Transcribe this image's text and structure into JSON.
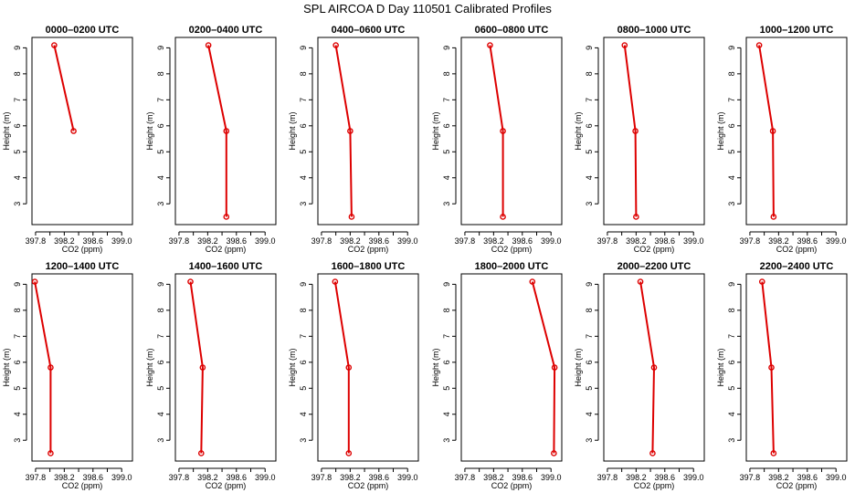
{
  "title": "SPL AIRCOA D  Day 110501  Calibrated Profiles",
  "colors": {
    "series": "#dd0000",
    "axis": "#000000"
  },
  "chart_data": [
    {
      "type": "line",
      "title": "0000–0200 UTC",
      "xlabel": "CO2 (ppm)",
      "ylabel": "Height (m)",
      "xlim": [
        397.75,
        399.15
      ],
      "ylim": [
        2.2,
        9.4
      ],
      "xticks": [
        "397.8",
        "398.2",
        "398.6",
        "399.0"
      ],
      "yticks": [
        "3",
        "4",
        "5",
        "6",
        "7",
        "8",
        "9"
      ],
      "points": [
        {
          "co2": 398.06,
          "height": 9.1
        },
        {
          "co2": 398.33,
          "height": 5.8
        }
      ]
    },
    {
      "type": "line",
      "title": "0200–0400 UTC",
      "xlabel": "CO2 (ppm)",
      "ylabel": "Height (m)",
      "xlim": [
        397.75,
        399.15
      ],
      "ylim": [
        2.2,
        9.4
      ],
      "xticks": [
        "397.8",
        "398.2",
        "398.6",
        "399.0"
      ],
      "yticks": [
        "3",
        "4",
        "5",
        "6",
        "7",
        "8",
        "9"
      ],
      "points": [
        {
          "co2": 398.21,
          "height": 9.1
        },
        {
          "co2": 398.46,
          "height": 5.8
        },
        {
          "co2": 398.46,
          "height": 2.5
        }
      ]
    },
    {
      "type": "line",
      "title": "0400–0600 UTC",
      "xlabel": "CO2 (ppm)",
      "ylabel": "Height (m)",
      "xlim": [
        397.75,
        399.15
      ],
      "ylim": [
        2.2,
        9.4
      ],
      "xticks": [
        "397.8",
        "398.2",
        "398.6",
        "399.0"
      ],
      "yticks": [
        "3",
        "4",
        "5",
        "6",
        "7",
        "8",
        "9"
      ],
      "points": [
        {
          "co2": 398.0,
          "height": 9.1
        },
        {
          "co2": 398.2,
          "height": 5.8
        },
        {
          "co2": 398.22,
          "height": 2.5
        }
      ]
    },
    {
      "type": "line",
      "title": "0600–0800 UTC",
      "xlabel": "CO2 (ppm)",
      "ylabel": "Height (m)",
      "xlim": [
        397.75,
        399.15
      ],
      "ylim": [
        2.2,
        9.4
      ],
      "xticks": [
        "397.8",
        "398.2",
        "398.6",
        "399.0"
      ],
      "yticks": [
        "3",
        "4",
        "5",
        "6",
        "7",
        "8",
        "9"
      ],
      "points": [
        {
          "co2": 398.15,
          "height": 9.1
        },
        {
          "co2": 398.33,
          "height": 5.8
        },
        {
          "co2": 398.33,
          "height": 2.5
        }
      ]
    },
    {
      "type": "line",
      "title": "0800–1000 UTC",
      "xlabel": "CO2 (ppm)",
      "ylabel": "Height (m)",
      "xlim": [
        397.75,
        399.15
      ],
      "ylim": [
        2.2,
        9.4
      ],
      "xticks": [
        "397.8",
        "398.2",
        "398.6",
        "399.0"
      ],
      "yticks": [
        "3",
        "4",
        "5",
        "6",
        "7",
        "8",
        "9"
      ],
      "points": [
        {
          "co2": 398.04,
          "height": 9.1
        },
        {
          "co2": 398.19,
          "height": 5.8
        },
        {
          "co2": 398.2,
          "height": 2.5
        }
      ]
    },
    {
      "type": "line",
      "title": "1000–1200 UTC",
      "xlabel": "CO2 (ppm)",
      "ylabel": "Height (m)",
      "xlim": [
        397.75,
        399.15
      ],
      "ylim": [
        2.2,
        9.4
      ],
      "xticks": [
        "397.8",
        "398.2",
        "398.6",
        "399.0"
      ],
      "yticks": [
        "3",
        "4",
        "5",
        "6",
        "7",
        "8",
        "9"
      ],
      "points": [
        {
          "co2": 397.93,
          "height": 9.1
        },
        {
          "co2": 398.12,
          "height": 5.8
        },
        {
          "co2": 398.13,
          "height": 2.5
        }
      ]
    },
    {
      "type": "line",
      "title": "1200–1400 UTC",
      "xlabel": "CO2 (ppm)",
      "ylabel": "Height (m)",
      "xlim": [
        397.75,
        399.15
      ],
      "ylim": [
        2.2,
        9.4
      ],
      "xticks": [
        "397.8",
        "398.2",
        "398.6",
        "399.0"
      ],
      "yticks": [
        "3",
        "4",
        "5",
        "6",
        "7",
        "8",
        "9"
      ],
      "points": [
        {
          "co2": 397.79,
          "height": 9.1
        },
        {
          "co2": 398.01,
          "height": 5.8
        },
        {
          "co2": 398.01,
          "height": 2.5
        }
      ]
    },
    {
      "type": "line",
      "title": "1400–1600 UTC",
      "xlabel": "CO2 (ppm)",
      "ylabel": "Height (m)",
      "xlim": [
        397.75,
        399.15
      ],
      "ylim": [
        2.2,
        9.4
      ],
      "xticks": [
        "397.8",
        "398.2",
        "398.6",
        "399.0"
      ],
      "yticks": [
        "3",
        "4",
        "5",
        "6",
        "7",
        "8",
        "9"
      ],
      "points": [
        {
          "co2": 397.96,
          "height": 9.1
        },
        {
          "co2": 398.13,
          "height": 5.8
        },
        {
          "co2": 398.11,
          "height": 2.5
        }
      ]
    },
    {
      "type": "line",
      "title": "1600–1800 UTC",
      "xlabel": "CO2 (ppm)",
      "ylabel": "Height (m)",
      "xlim": [
        397.75,
        399.15
      ],
      "ylim": [
        2.2,
        9.4
      ],
      "xticks": [
        "397.8",
        "398.2",
        "398.6",
        "399.0"
      ],
      "yticks": [
        "3",
        "4",
        "5",
        "6",
        "7",
        "8",
        "9"
      ],
      "points": [
        {
          "co2": 397.99,
          "height": 9.1
        },
        {
          "co2": 398.18,
          "height": 5.8
        },
        {
          "co2": 398.18,
          "height": 2.5
        }
      ]
    },
    {
      "type": "line",
      "title": "1800–2000 UTC",
      "xlabel": "CO2 (ppm)",
      "ylabel": "Height (m)",
      "xlim": [
        397.75,
        399.15
      ],
      "ylim": [
        2.2,
        9.4
      ],
      "xticks": [
        "397.8",
        "398.2",
        "398.6",
        "399.0"
      ],
      "yticks": [
        "3",
        "4",
        "5",
        "6",
        "7",
        "8",
        "9"
      ],
      "points": [
        {
          "co2": 398.74,
          "height": 9.1
        },
        {
          "co2": 399.05,
          "height": 5.8
        },
        {
          "co2": 399.04,
          "height": 2.5
        }
      ]
    },
    {
      "type": "line",
      "title": "2000–2200 UTC",
      "xlabel": "CO2 (ppm)",
      "ylabel": "Height (m)",
      "xlim": [
        397.75,
        399.15
      ],
      "ylim": [
        2.2,
        9.4
      ],
      "xticks": [
        "397.8",
        "398.2",
        "398.6",
        "399.0"
      ],
      "yticks": [
        "3",
        "4",
        "5",
        "6",
        "7",
        "8",
        "9"
      ],
      "points": [
        {
          "co2": 398.26,
          "height": 9.1
        },
        {
          "co2": 398.45,
          "height": 5.8
        },
        {
          "co2": 398.43,
          "height": 2.5
        }
      ]
    },
    {
      "type": "line",
      "title": "2200–2400 UTC",
      "xlabel": "CO2 (ppm)",
      "ylabel": "Height (m)",
      "xlim": [
        397.75,
        399.15
      ],
      "ylim": [
        2.2,
        9.4
      ],
      "xticks": [
        "397.8",
        "398.2",
        "398.6",
        "399.0"
      ],
      "yticks": [
        "3",
        "4",
        "5",
        "6",
        "7",
        "8",
        "9"
      ],
      "points": [
        {
          "co2": 397.97,
          "height": 9.1
        },
        {
          "co2": 398.1,
          "height": 5.8
        },
        {
          "co2": 398.13,
          "height": 2.5
        }
      ]
    }
  ]
}
